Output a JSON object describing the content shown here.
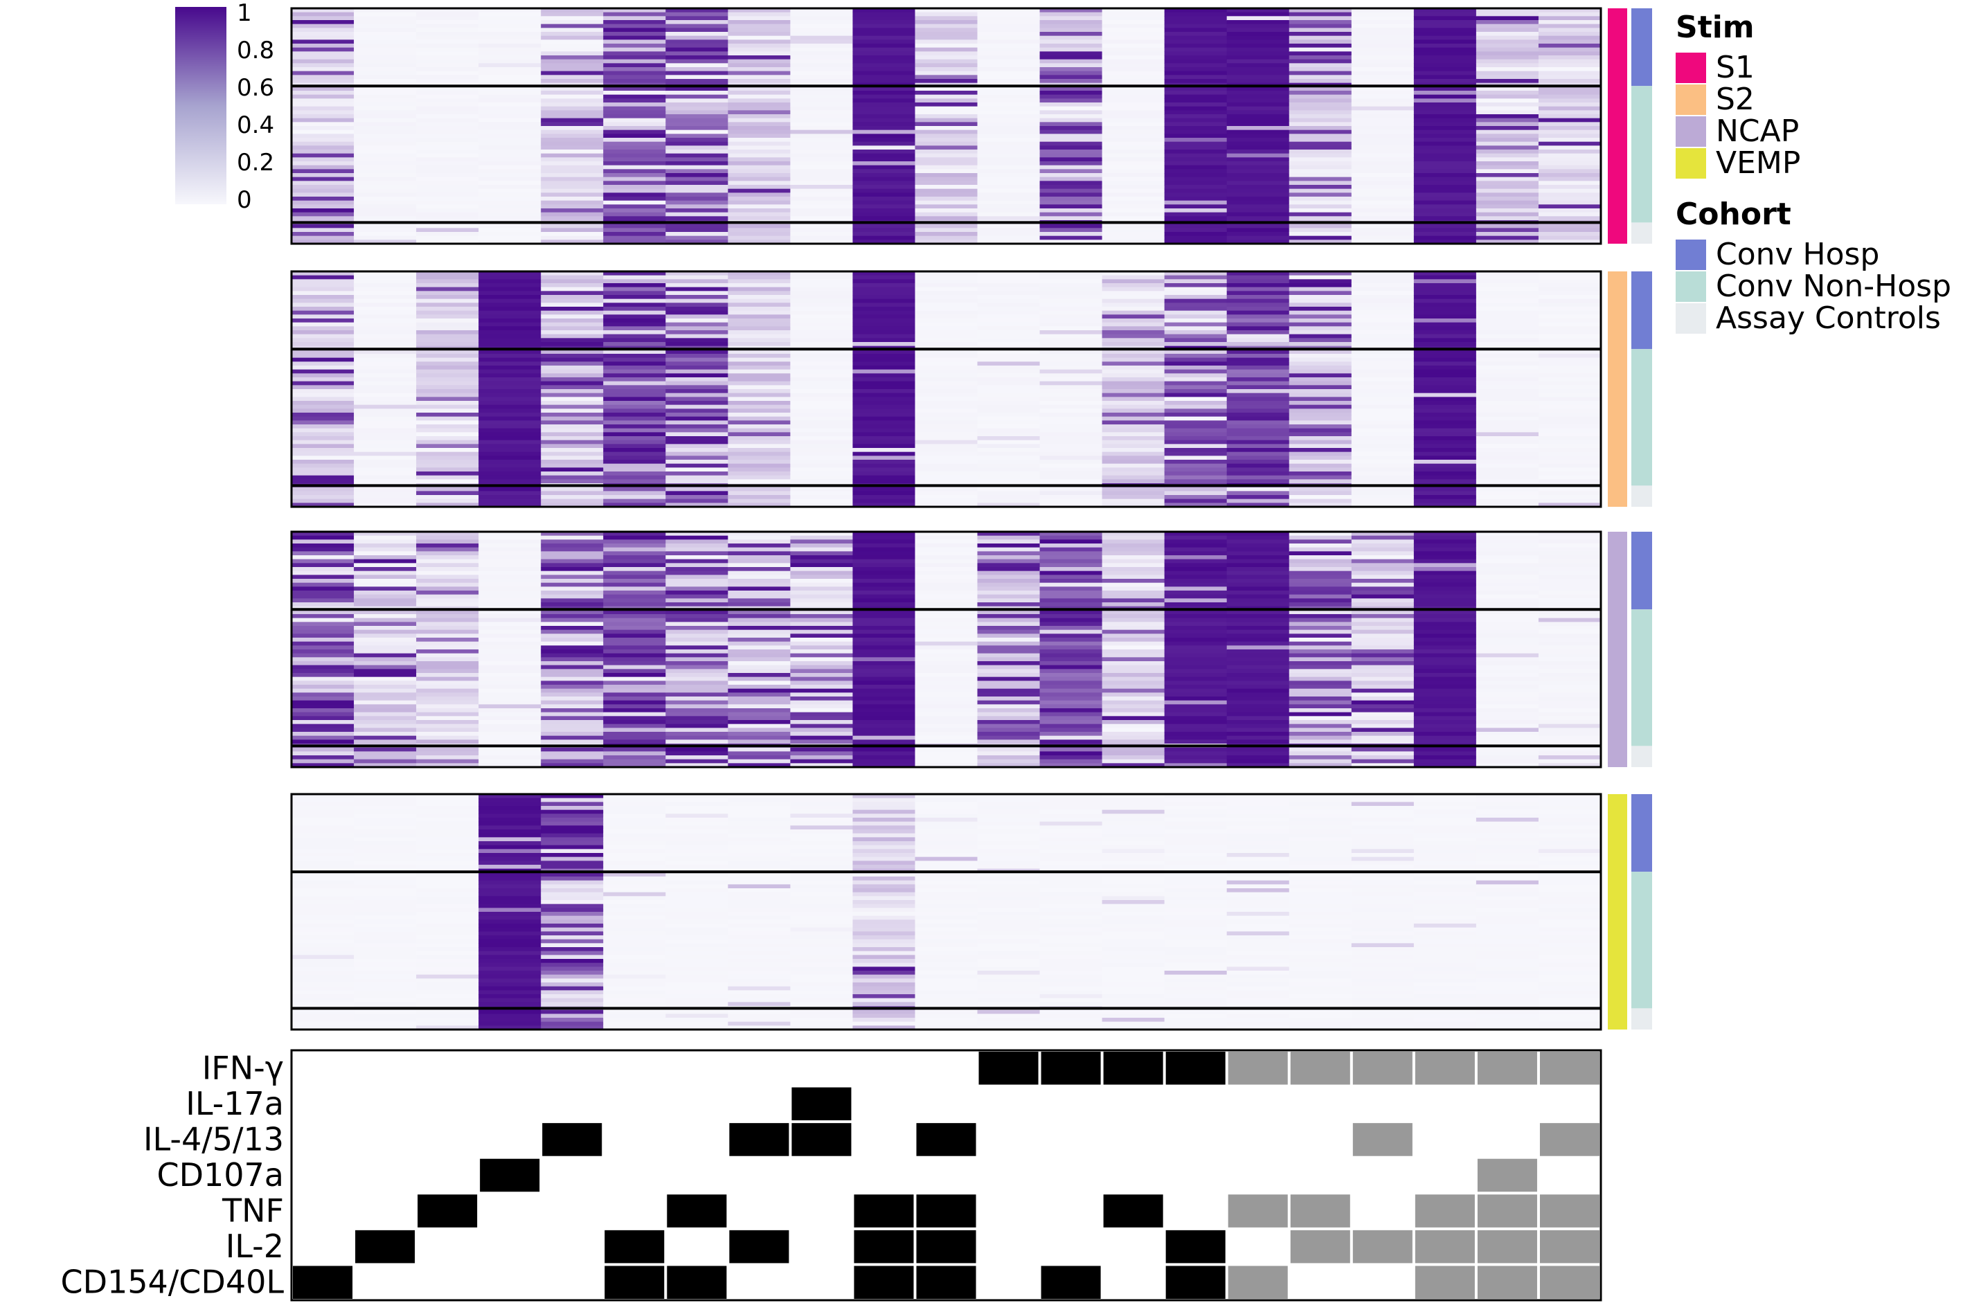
{
  "chart_data": {
    "type": "heatmap",
    "colorscale": {
      "low": "#f7f7fc",
      "high": "#48098d",
      "range": [
        0,
        1
      ],
      "ticks": [
        "1",
        "0.8",
        "0.6",
        "0.4",
        "0.2",
        "0"
      ]
    },
    "n_columns": 21,
    "column_groups": {
      "black_columns": [
        1,
        2,
        3,
        4,
        5,
        6,
        7,
        8,
        9,
        10,
        11,
        12,
        13,
        14,
        15
      ],
      "gray_columns": [
        16,
        17,
        18,
        19,
        20,
        21
      ]
    },
    "panels": [
      {
        "stim": "S1",
        "column_means": [
          0.25,
          0.02,
          0.02,
          0.02,
          0.15,
          0.8,
          0.55,
          0.05,
          0.02,
          0.9,
          0.05,
          0.02,
          0.55,
          0.02,
          0.95,
          0.9,
          0.2,
          0.02,
          0.9,
          0.15,
          0.1
        ],
        "section_fractions": [
          0.33,
          0.58,
          0.09
        ]
      },
      {
        "stim": "S2",
        "column_means": [
          0.25,
          0.02,
          0.08,
          0.95,
          0.2,
          0.7,
          0.6,
          0.08,
          0.02,
          0.95,
          0.02,
          0.02,
          0.02,
          0.15,
          0.55,
          0.85,
          0.35,
          0.02,
          0.95,
          0.02,
          0.02
        ],
        "section_fractions": [
          0.33,
          0.58,
          0.09
        ]
      },
      {
        "stim": "NCAP",
        "column_means": [
          0.65,
          0.2,
          0.08,
          0.02,
          0.45,
          0.85,
          0.55,
          0.25,
          0.25,
          0.95,
          0.02,
          0.35,
          0.85,
          0.1,
          0.9,
          0.95,
          0.55,
          0.3,
          0.95,
          0.02,
          0.02
        ],
        "section_fractions": [
          0.33,
          0.58,
          0.09
        ]
      },
      {
        "stim": "VEMP",
        "column_means": [
          0.01,
          0.01,
          0.01,
          0.98,
          0.55,
          0.01,
          0.01,
          0.01,
          0.01,
          0.05,
          0.01,
          0.01,
          0.01,
          0.01,
          0.01,
          0.01,
          0.01,
          0.01,
          0.01,
          0.01,
          0.01
        ],
        "section_fractions": [
          0.33,
          0.58,
          0.09
        ]
      }
    ],
    "legend": {
      "stim": {
        "title": "Stim",
        "items": [
          {
            "label": "S1",
            "color": "#ef087d"
          },
          {
            "label": "S2",
            "color": "#fbbf83"
          },
          {
            "label": "NCAP",
            "color": "#bcaad6"
          },
          {
            "label": "VEMP",
            "color": "#e5e43c"
          }
        ]
      },
      "cohort": {
        "title": "Cohort",
        "items": [
          {
            "label": "Conv Hosp",
            "color": "#717ed3"
          },
          {
            "label": "Conv Non-Hosp",
            "color": "#b9ddd7"
          },
          {
            "label": "Assay Controls",
            "color": "#e8ecef"
          }
        ]
      }
    },
    "boolean_matrix": {
      "row_labels": [
        "IFN-γ",
        "IL-17a",
        "IL-4/5/13",
        "CD107a",
        "TNF",
        "IL-2",
        "CD154/CD40L"
      ],
      "black_color": "#000000",
      "gray_color": "#999999",
      "rows": [
        [
          0,
          0,
          0,
          0,
          0,
          0,
          0,
          0,
          0,
          0,
          0,
          1,
          1,
          1,
          1,
          1,
          1,
          1,
          1,
          1,
          1
        ],
        [
          0,
          0,
          0,
          0,
          0,
          0,
          0,
          0,
          1,
          0,
          0,
          0,
          0,
          0,
          0,
          0,
          0,
          0,
          0,
          0,
          0
        ],
        [
          0,
          0,
          0,
          0,
          1,
          0,
          0,
          1,
          1,
          0,
          1,
          0,
          0,
          0,
          0,
          0,
          0,
          1,
          0,
          0,
          1
        ],
        [
          0,
          0,
          0,
          1,
          0,
          0,
          0,
          0,
          0,
          0,
          0,
          0,
          0,
          0,
          0,
          0,
          0,
          0,
          0,
          1,
          0
        ],
        [
          0,
          0,
          1,
          0,
          0,
          0,
          1,
          0,
          0,
          1,
          1,
          0,
          0,
          1,
          0,
          1,
          1,
          0,
          1,
          1,
          1
        ],
        [
          0,
          1,
          0,
          0,
          0,
          1,
          0,
          1,
          0,
          1,
          1,
          0,
          0,
          0,
          1,
          0,
          1,
          1,
          1,
          1,
          1
        ],
        [
          1,
          0,
          0,
          0,
          0,
          1,
          1,
          0,
          0,
          1,
          1,
          0,
          1,
          0,
          1,
          1,
          0,
          0,
          1,
          1,
          1
        ]
      ]
    }
  }
}
